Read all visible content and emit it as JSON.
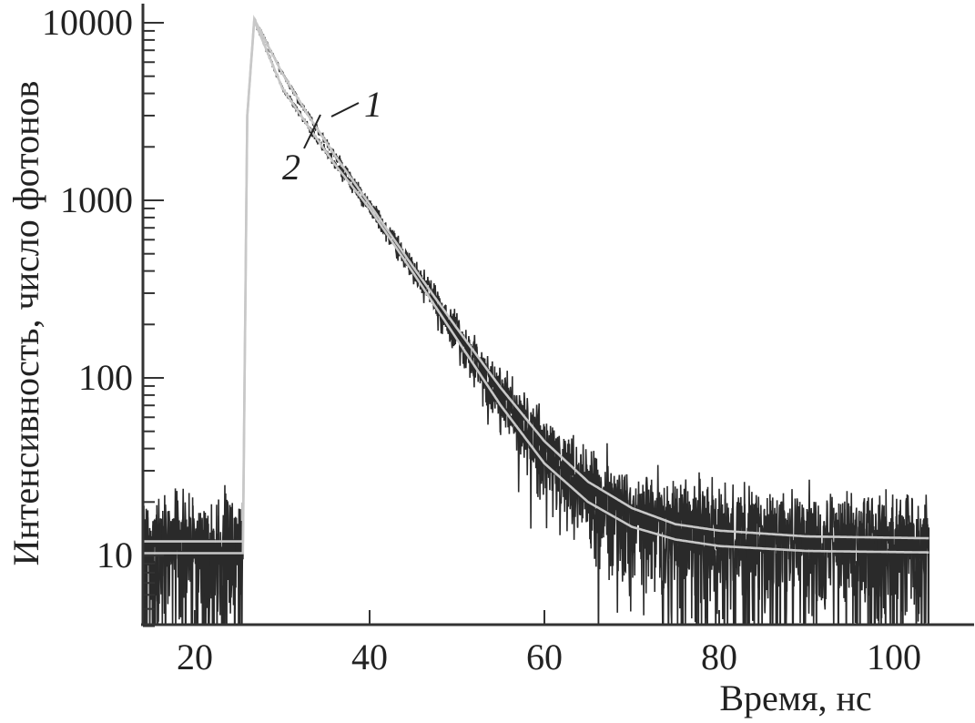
{
  "chart_data": {
    "type": "line",
    "title": "",
    "xlabel": "Время, нс",
    "ylabel": "Интенсивность, число фотонов",
    "xlim": [
      14,
      110
    ],
    "ylim": [
      4,
      11000
    ],
    "yscale": "log",
    "grid": false,
    "x_ticks": [
      20,
      40,
      60,
      80,
      100
    ],
    "x_tick_labels": [
      "20",
      "40",
      "60",
      "80",
      "100"
    ],
    "y_ticks": [
      10,
      100,
      1000,
      10000
    ],
    "y_tick_labels": [
      "10",
      "100",
      "1000",
      "10000"
    ],
    "colors": {
      "data": "#2a2a2a",
      "fit": "#c8c8c8",
      "axis": "#333333"
    },
    "series": [
      {
        "name": "1",
        "label": "1",
        "kind": "measured decay with fit",
        "t_range": [
          13,
          104
        ],
        "fit": {
          "x": [
            13,
            25.5,
            26,
            26.8,
            30,
            33,
            36,
            40,
            45,
            50,
            55,
            60,
            65,
            70,
            75,
            80,
            90,
            104
          ],
          "y": [
            12,
            12,
            3000,
            10500,
            5200,
            3000,
            1800,
            950,
            420,
            190,
            88,
            44,
            26,
            18.5,
            15,
            13.8,
            12.8,
            12.5
          ]
        }
      },
      {
        "name": "2",
        "label": "2",
        "kind": "measured decay with fit",
        "t_range": [
          13,
          104
        ],
        "fit": {
          "x": [
            13,
            25.5,
            26,
            26.8,
            30,
            33,
            36,
            40,
            45,
            50,
            55,
            60,
            65,
            70,
            75,
            80,
            90,
            104
          ],
          "y": [
            10.3,
            10.3,
            3000,
            10300,
            4300,
            2600,
            1600,
            900,
            390,
            165,
            70,
            33,
            20,
            14.5,
            12.3,
            11.3,
            10.6,
            10.4
          ]
        }
      }
    ],
    "annotations": [
      {
        "text": "1",
        "points_to_series": "1"
      },
      {
        "text": "2",
        "points_to_series": "2"
      }
    ]
  }
}
